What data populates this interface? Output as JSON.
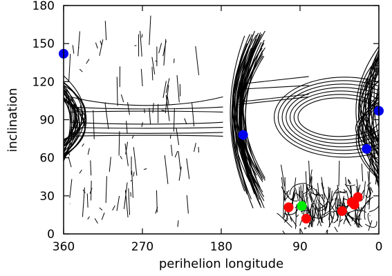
{
  "chart_data": {
    "type": "scatter",
    "title": "",
    "xlabel": "perihelion longitude",
    "ylabel": "inclination",
    "x_reversed": true,
    "xlim": [
      360,
      0
    ],
    "ylim": [
      0,
      180
    ],
    "x_ticks": [
      360,
      270,
      180,
      90,
      0
    ],
    "y_ticks": [
      0,
      30,
      60,
      90,
      120,
      150,
      180
    ],
    "grid": false,
    "legend": "none",
    "colors": {
      "track": "#000000",
      "blue": "#0000ee",
      "red": "#ff0000",
      "green": "#00ee00"
    },
    "series": [
      {
        "color": "blue",
        "x": [
          360,
          155,
          0,
          14
        ],
        "y": [
          142,
          78,
          97,
          67
        ]
      },
      {
        "color": "red",
        "x": [
          103,
          83,
          42,
          31,
          24,
          28
        ],
        "y": [
          21,
          12,
          18,
          25,
          29,
          23
        ]
      },
      {
        "color": "green",
        "x": [
          88
        ],
        "y": [
          22
        ]
      }
    ]
  }
}
